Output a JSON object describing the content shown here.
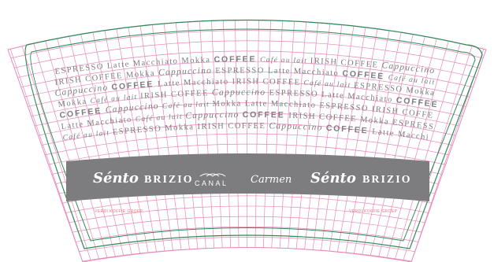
{
  "pattern_rows": [
    [
      {
        "t": "ESPRESSO",
        "s": "plain"
      },
      {
        "t": "Latte Macchiato",
        "s": "plain"
      },
      {
        "t": "Mokka",
        "s": "plain"
      },
      {
        "t": "COFFEE",
        "s": "bold"
      },
      {
        "t": "Café au lait",
        "s": "script-sm"
      },
      {
        "t": "IRISH COFFEE",
        "s": "plain"
      },
      {
        "t": "Cappuccino",
        "s": "script"
      }
    ],
    [
      {
        "t": "IRISH COFFEE",
        "s": "plain"
      },
      {
        "t": "Mokka",
        "s": "plain"
      },
      {
        "t": "Cappuccino",
        "s": "script"
      },
      {
        "t": "ESPRESSO",
        "s": "plain"
      },
      {
        "t": "Latte Macchiato",
        "s": "plain"
      },
      {
        "t": "COFFEE",
        "s": "bold"
      },
      {
        "t": "Café au lait",
        "s": "script-sm"
      }
    ],
    [
      {
        "t": "Cappuccino",
        "s": "script"
      },
      {
        "t": "COFFEE",
        "s": "bold"
      },
      {
        "t": "Latte Macchiato",
        "s": "plain"
      },
      {
        "t": "IRISH COFFEE",
        "s": "plain"
      },
      {
        "t": "Café au lait",
        "s": "script-sm"
      },
      {
        "t": "ESPRESSO",
        "s": "plain"
      },
      {
        "t": "Mokka",
        "s": "plain"
      }
    ],
    [
      {
        "t": "Mokka",
        "s": "plain"
      },
      {
        "t": "Café au lait",
        "s": "script-sm"
      },
      {
        "t": "IRISH COFFEE",
        "s": "plain"
      },
      {
        "t": "Cappuccino",
        "s": "script"
      },
      {
        "t": "ESPRESSO",
        "s": "plain"
      },
      {
        "t": "Latte Macchiato",
        "s": "plain"
      },
      {
        "t": "COFFEE",
        "s": "bold"
      }
    ],
    [
      {
        "t": "COFFEE",
        "s": "bold"
      },
      {
        "t": "Cappuccino",
        "s": "script"
      },
      {
        "t": "Café au lait",
        "s": "script-sm"
      },
      {
        "t": "Mokka",
        "s": "plain"
      },
      {
        "t": "Latte Macchiato",
        "s": "plain"
      },
      {
        "t": "ESPRESSO",
        "s": "plain"
      },
      {
        "t": "IRISH COFFEE",
        "s": "plain"
      }
    ],
    [
      {
        "t": "Latte Macchiato",
        "s": "plain"
      },
      {
        "t": "Café au lait",
        "s": "script-sm"
      },
      {
        "t": "Cappuccino",
        "s": "script"
      },
      {
        "t": "COFFEE",
        "s": "bold"
      },
      {
        "t": "IRISH COFFEE",
        "s": "plain"
      },
      {
        "t": "Mokka",
        "s": "plain"
      },
      {
        "t": "ESPRESSO",
        "s": "plain"
      }
    ],
    [
      {
        "t": "Café au lait",
        "s": "script-sm"
      },
      {
        "t": "ESPRESSO",
        "s": "plain"
      },
      {
        "t": "Mokka",
        "s": "plain"
      },
      {
        "t": "IRISH COFFEE",
        "s": "plain"
      },
      {
        "t": "Cappuccino",
        "s": "script"
      },
      {
        "t": "COFFEE",
        "s": "bold"
      },
      {
        "t": "Latte Macchiato",
        "s": "plain"
      }
    ]
  ],
  "brands": {
    "sento_1": "Sénto",
    "brizio_1": "BRIZIO",
    "canal": "CANAL",
    "carmen": "Carmen",
    "sento_2": "Sénto",
    "brizio_2": "BRIZIO"
  },
  "footer": {
    "left": "VERDI KOFFIE GROEP",
    "right": "VERDI KOFFIE GROEP"
  },
  "colors": {
    "grid": "#e888b8",
    "outline": "#2e8b57",
    "band": "#7d7d7f",
    "pattern_text": "#7d7d7f",
    "footer_text": "#e8747e"
  }
}
